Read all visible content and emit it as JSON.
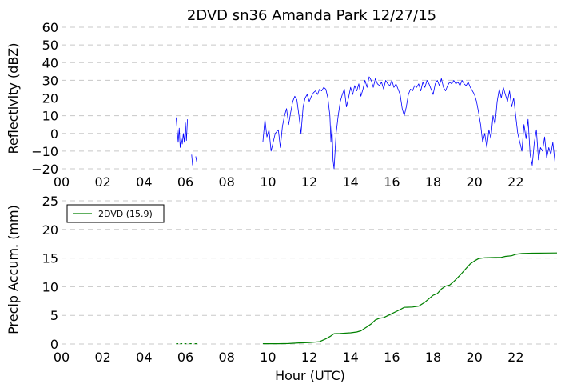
{
  "chart_data": [
    {
      "type": "line",
      "title": "2DVD sn36 Amanda Park 12/27/15",
      "xlabel": "",
      "ylabel": "Reflectivity (dBZ)",
      "xlim": [
        0,
        24
      ],
      "ylim": [
        -20,
        60
      ],
      "yticks": [
        -20,
        -10,
        0,
        10,
        20,
        30,
        40,
        50,
        60
      ],
      "xticks": [
        0,
        2,
        4,
        6,
        8,
        10,
        12,
        14,
        16,
        18,
        20,
        22
      ],
      "xtick_labels": [
        "00",
        "02",
        "04",
        "06",
        "08",
        "10",
        "12",
        "14",
        "16",
        "18",
        "20",
        "22"
      ],
      "grid": true,
      "color": "#0000ff",
      "series": [
        {
          "segments": [
            [
              [
                5.55,
                9
              ],
              [
                5.6,
                2
              ],
              [
                5.65,
                -5
              ],
              [
                5.7,
                3
              ],
              [
                5.75,
                -8
              ],
              [
                5.8,
                -3
              ],
              [
                5.85,
                -6
              ],
              [
                5.9,
                0
              ],
              [
                5.95,
                -5
              ],
              [
                6.0,
                6
              ],
              [
                6.05,
                -4
              ],
              [
                6.1,
                8
              ]
            ],
            [
              [
                6.3,
                -12
              ],
              [
                6.35,
                -18
              ]
            ],
            [
              [
                6.5,
                -13
              ],
              [
                6.55,
                -16
              ]
            ],
            [
              [
                9.75,
                -5
              ],
              [
                9.85,
                8
              ],
              [
                9.95,
                -2
              ],
              [
                10.05,
                2
              ],
              [
                10.15,
                -10
              ],
              [
                10.25,
                -5
              ],
              [
                10.35,
                0
              ],
              [
                10.5,
                2
              ],
              [
                10.6,
                -8
              ],
              [
                10.7,
                4
              ],
              [
                10.8,
                10
              ],
              [
                10.9,
                14
              ],
              [
                11.0,
                5
              ],
              [
                11.1,
                12
              ],
              [
                11.2,
                18
              ],
              [
                11.3,
                21
              ],
              [
                11.4,
                19
              ],
              [
                11.5,
                10
              ],
              [
                11.6,
                0
              ],
              [
                11.7,
                15
              ],
              [
                11.8,
                20
              ],
              [
                11.9,
                22
              ],
              [
                12.0,
                18
              ],
              [
                12.1,
                21
              ],
              [
                12.2,
                23
              ],
              [
                12.3,
                24
              ],
              [
                12.4,
                22
              ],
              [
                12.5,
                25
              ],
              [
                12.6,
                24
              ],
              [
                12.7,
                26
              ],
              [
                12.8,
                25
              ],
              [
                12.9,
                20
              ],
              [
                13.0,
                10
              ],
              [
                13.05,
                -5
              ],
              [
                13.1,
                5
              ],
              [
                13.15,
                -15
              ],
              [
                13.2,
                -20
              ],
              [
                13.25,
                -10
              ],
              [
                13.3,
                0
              ],
              [
                13.4,
                10
              ],
              [
                13.5,
                18
              ],
              [
                13.6,
                22
              ],
              [
                13.7,
                25
              ],
              [
                13.8,
                15
              ],
              [
                13.9,
                20
              ],
              [
                14.0,
                26
              ],
              [
                14.1,
                22
              ],
              [
                14.2,
                27
              ],
              [
                14.3,
                24
              ],
              [
                14.4,
                28
              ],
              [
                14.5,
                21
              ],
              [
                14.6,
                25
              ],
              [
                14.7,
                30
              ],
              [
                14.8,
                26
              ],
              [
                14.9,
                32
              ],
              [
                15.0,
                30
              ],
              [
                15.1,
                26
              ],
              [
                15.2,
                31
              ],
              [
                15.3,
                28
              ],
              [
                15.4,
                27
              ],
              [
                15.5,
                29
              ],
              [
                15.6,
                25
              ],
              [
                15.7,
                30
              ],
              [
                15.8,
                28
              ],
              [
                15.9,
                27
              ],
              [
                16.0,
                30
              ],
              [
                16.1,
                26
              ],
              [
                16.2,
                28
              ],
              [
                16.3,
                25
              ],
              [
                16.4,
                22
              ],
              [
                16.5,
                14
              ],
              [
                16.6,
                10
              ],
              [
                16.7,
                15
              ],
              [
                16.8,
                22
              ],
              [
                16.9,
                25
              ],
              [
                17.0,
                24
              ],
              [
                17.1,
                27
              ],
              [
                17.2,
                26
              ],
              [
                17.3,
                28
              ],
              [
                17.4,
                24
              ],
              [
                17.5,
                29
              ],
              [
                17.6,
                26
              ],
              [
                17.7,
                30
              ],
              [
                17.8,
                28
              ],
              [
                17.9,
                25
              ],
              [
                18.0,
                22
              ],
              [
                18.1,
                28
              ],
              [
                18.2,
                30
              ],
              [
                18.3,
                27
              ],
              [
                18.4,
                31
              ],
              [
                18.5,
                26
              ],
              [
                18.6,
                24
              ],
              [
                18.7,
                27
              ],
              [
                18.8,
                29
              ],
              [
                18.9,
                28
              ],
              [
                19.0,
                30
              ],
              [
                19.1,
                28
              ],
              [
                19.2,
                29
              ],
              [
                19.3,
                27
              ],
              [
                19.4,
                30
              ],
              [
                19.5,
                28
              ],
              [
                19.6,
                27
              ],
              [
                19.7,
                29
              ],
              [
                19.8,
                26
              ],
              [
                19.9,
                24
              ],
              [
                20.0,
                22
              ],
              [
                20.1,
                18
              ],
              [
                20.2,
                12
              ],
              [
                20.3,
                5
              ],
              [
                20.4,
                -5
              ],
              [
                20.5,
                0
              ],
              [
                20.6,
                -8
              ],
              [
                20.7,
                2
              ],
              [
                20.8,
                -3
              ],
              [
                20.9,
                10
              ],
              [
                21.0,
                5
              ],
              [
                21.1,
                18
              ],
              [
                21.2,
                25
              ],
              [
                21.3,
                20
              ],
              [
                21.4,
                26
              ],
              [
                21.5,
                22
              ],
              [
                21.6,
                18
              ],
              [
                21.7,
                24
              ],
              [
                21.8,
                15
              ],
              [
                21.9,
                20
              ],
              [
                22.0,
                10
              ],
              [
                22.1,
                0
              ],
              [
                22.2,
                -5
              ],
              [
                22.3,
                -10
              ],
              [
                22.4,
                5
              ],
              [
                22.5,
                -3
              ],
              [
                22.6,
                8
              ],
              [
                22.7,
                -12
              ],
              [
                22.8,
                -18
              ],
              [
                22.9,
                -5
              ],
              [
                23.0,
                2
              ],
              [
                23.1,
                -15
              ],
              [
                23.2,
                -8
              ],
              [
                23.3,
                -10
              ],
              [
                23.4,
                -2
              ],
              [
                23.5,
                -14
              ],
              [
                23.6,
                -8
              ],
              [
                23.7,
                -12
              ],
              [
                23.8,
                -5
              ],
              [
                23.9,
                -16
              ]
            ]
          ]
        }
      ]
    },
    {
      "type": "line",
      "title": "",
      "xlabel": "Hour (UTC)",
      "ylabel": "Precip Accum. (mm)",
      "xlim": [
        0,
        24
      ],
      "ylim": [
        0,
        25
      ],
      "yticks": [
        0,
        5,
        10,
        15,
        20,
        25
      ],
      "xticks": [
        0,
        2,
        4,
        6,
        8,
        10,
        12,
        14,
        16,
        18,
        20,
        22
      ],
      "xtick_labels": [
        "00",
        "02",
        "04",
        "06",
        "08",
        "10",
        "12",
        "14",
        "16",
        "18",
        "20",
        "22"
      ],
      "grid": true,
      "legend_position": "top-left",
      "color": "#008000",
      "series": [
        {
          "name": "2DVD (15.9)",
          "segments": [
            [
              [
                5.55,
                0.05
              ],
              [
                5.65,
                0.05
              ]
            ],
            [
              [
                5.75,
                0.05
              ],
              [
                5.85,
                0.05
              ]
            ],
            [
              [
                5.95,
                0.05
              ],
              [
                6.05,
                0.05
              ]
            ],
            [
              [
                6.2,
                0.05
              ],
              [
                6.3,
                0.05
              ]
            ],
            [
              [
                6.45,
                0.05
              ],
              [
                6.55,
                0.05
              ]
            ],
            [
              [
                9.75,
                0.05
              ],
              [
                10.5,
                0.06
              ],
              [
                11.0,
                0.08
              ],
              [
                11.5,
                0.2
              ],
              [
                12.0,
                0.25
              ],
              [
                12.5,
                0.4
              ],
              [
                12.8,
                0.9
              ],
              [
                13.0,
                1.3
              ],
              [
                13.2,
                1.8
              ],
              [
                13.5,
                1.85
              ],
              [
                14.0,
                1.95
              ],
              [
                14.3,
                2.1
              ],
              [
                14.5,
                2.3
              ],
              [
                14.8,
                3.0
              ],
              [
                15.0,
                3.5
              ],
              [
                15.2,
                4.2
              ],
              [
                15.4,
                4.5
              ],
              [
                15.6,
                4.6
              ],
              [
                16.0,
                5.3
              ],
              [
                16.4,
                6.0
              ],
              [
                16.6,
                6.4
              ],
              [
                17.0,
                6.45
              ],
              [
                17.3,
                6.6
              ],
              [
                17.6,
                7.3
              ],
              [
                18.0,
                8.5
              ],
              [
                18.2,
                8.8
              ],
              [
                18.4,
                9.6
              ],
              [
                18.6,
                10.1
              ],
              [
                18.8,
                10.3
              ],
              [
                19.0,
                10.9
              ],
              [
                19.3,
                12.0
              ],
              [
                19.6,
                13.2
              ],
              [
                19.8,
                14.0
              ],
              [
                20.0,
                14.5
              ],
              [
                20.2,
                14.9
              ],
              [
                20.5,
                15.05
              ],
              [
                21.0,
                15.1
              ],
              [
                21.3,
                15.12
              ],
              [
                21.5,
                15.3
              ],
              [
                21.8,
                15.4
              ],
              [
                22.0,
                15.65
              ],
              [
                22.3,
                15.8
              ],
              [
                22.8,
                15.85
              ],
              [
                23.5,
                15.88
              ],
              [
                24.0,
                15.9
              ]
            ]
          ]
        }
      ]
    }
  ]
}
